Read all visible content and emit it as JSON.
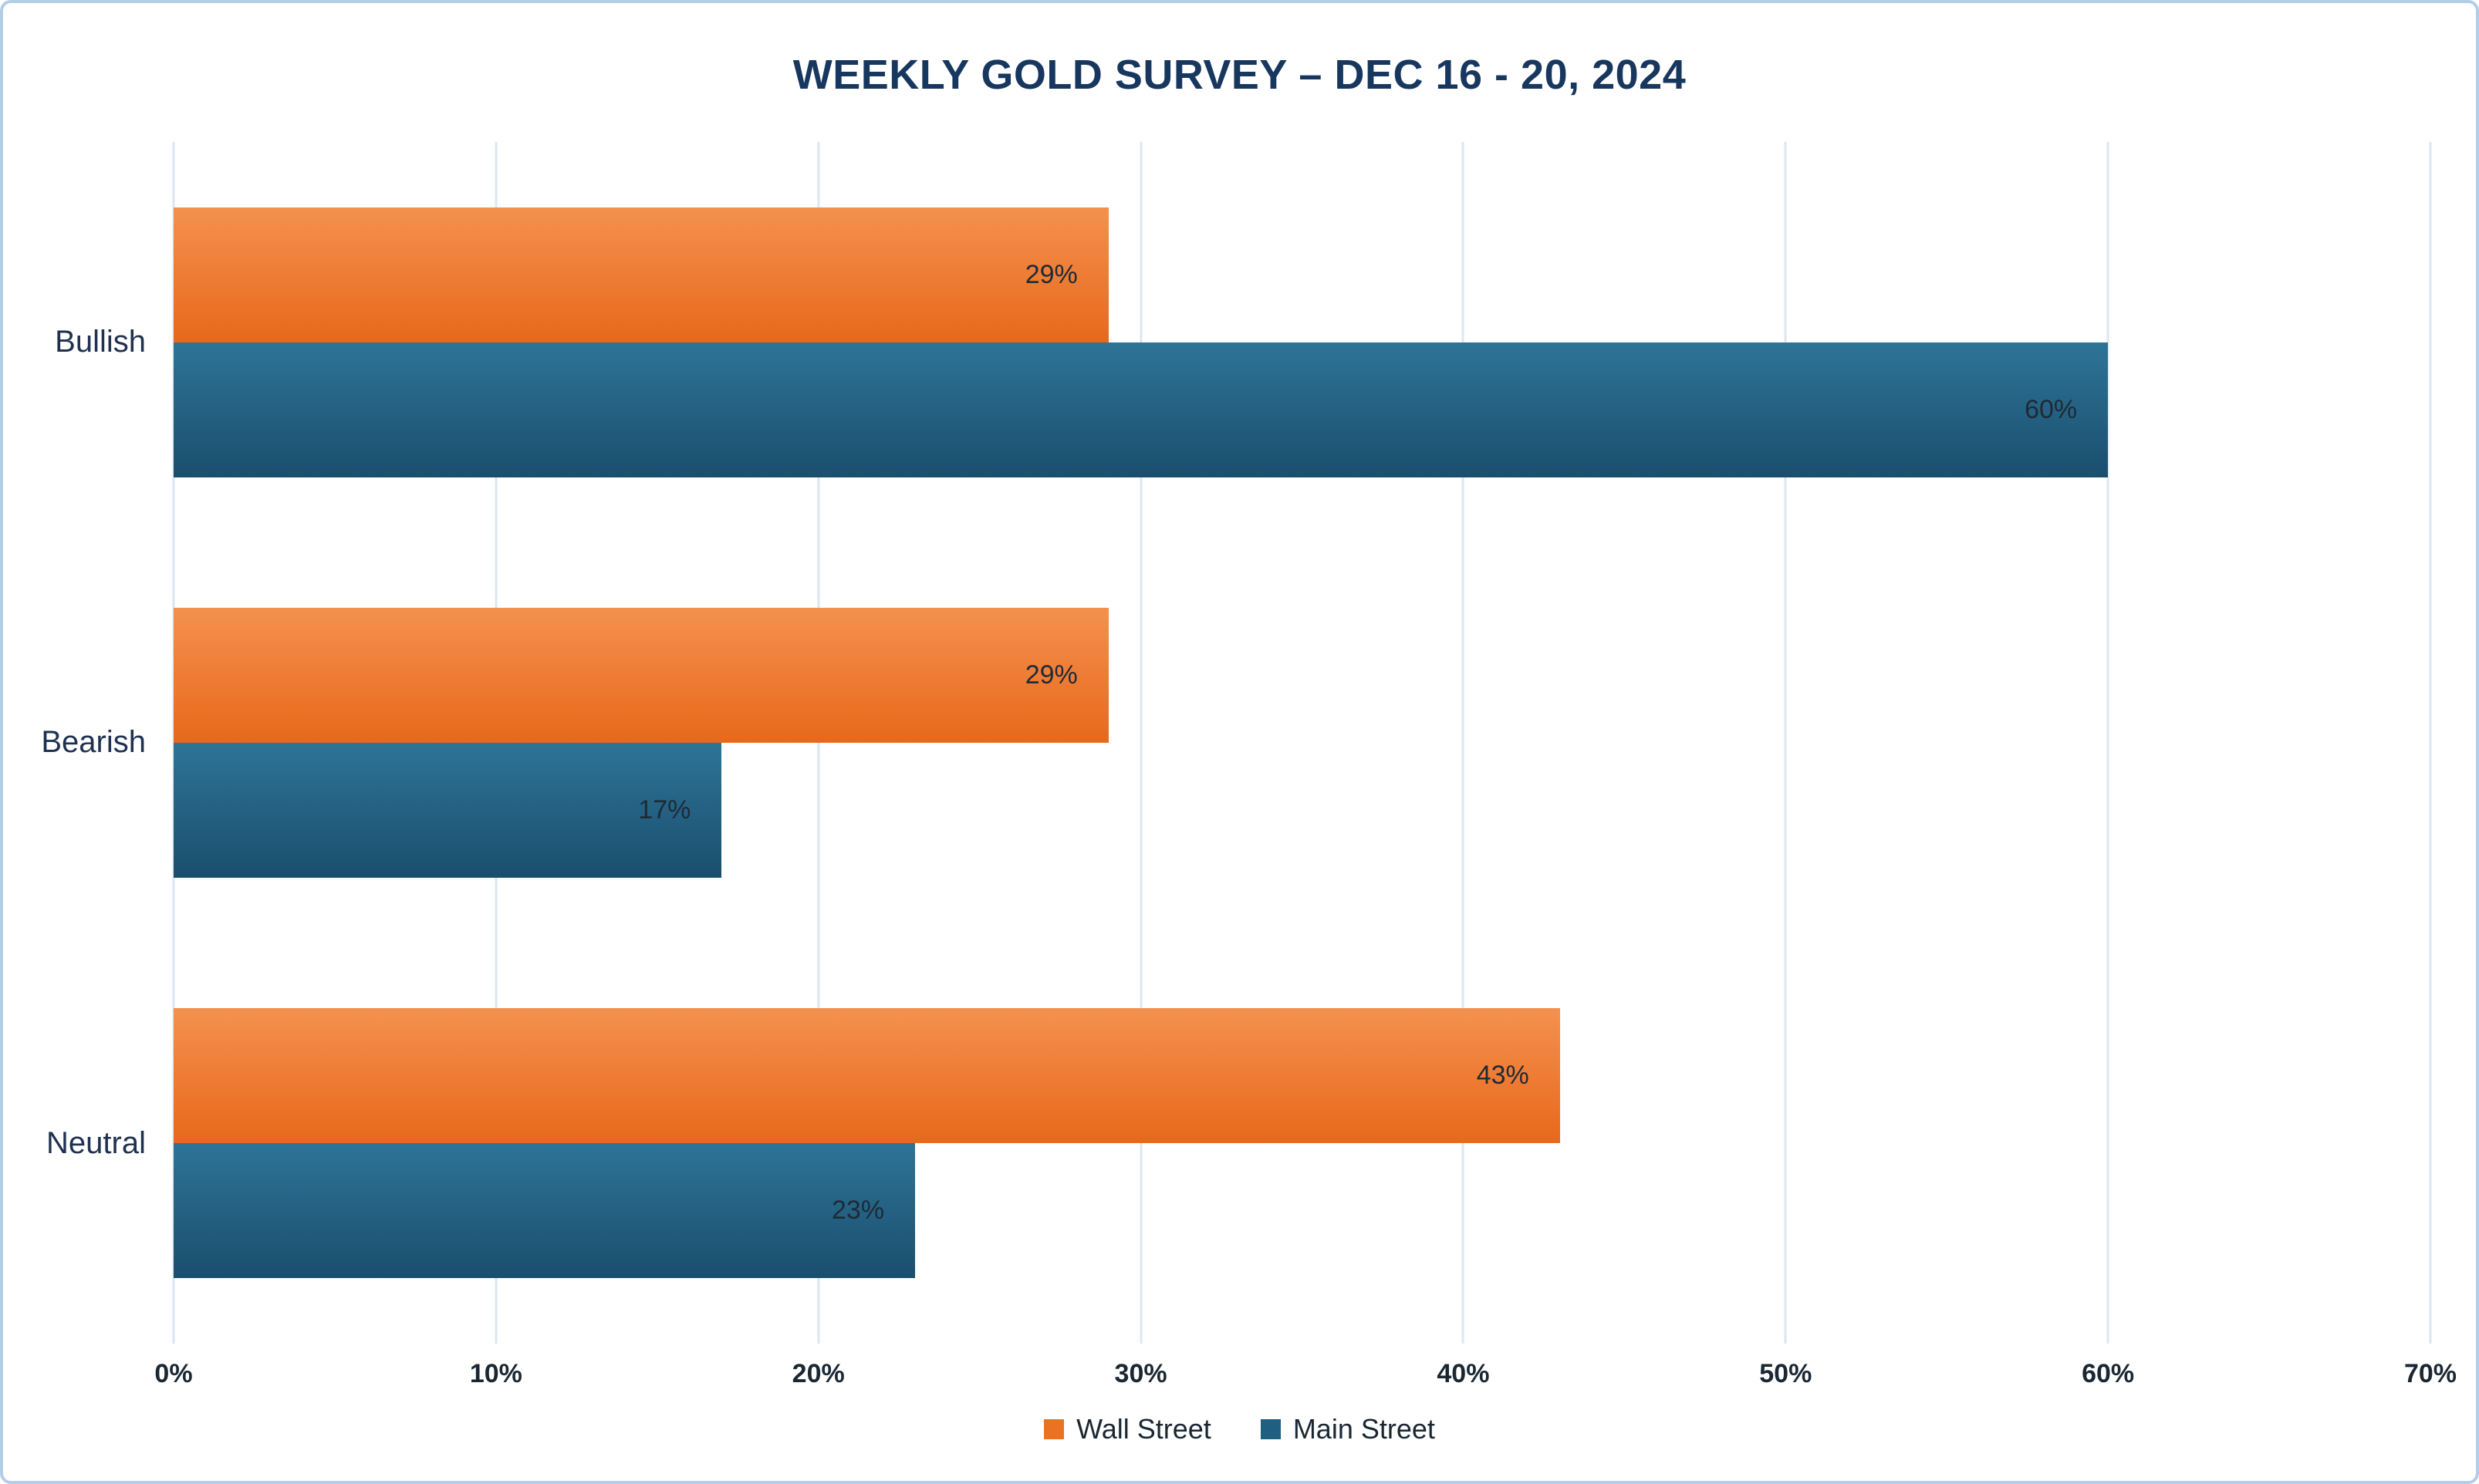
{
  "chart_data": {
    "type": "bar",
    "orientation": "horizontal",
    "title": "WEEKLY GOLD SURVEY – DEC 16 - 20, 2024",
    "categories": [
      "Bullish",
      "Bearish",
      "Neutral"
    ],
    "series": [
      {
        "name": "Wall Street",
        "legend_color": "#ec7223",
        "color_top": "#f4914f",
        "color_bottom": "#e8681b",
        "values": [
          29,
          29,
          43
        ]
      },
      {
        "name": "Main Street",
        "legend_color": "#1f5f82",
        "color_top": "#2e7497",
        "color_bottom": "#1a4e6e",
        "values": [
          60,
          17,
          23
        ]
      }
    ],
    "xlim": [
      0,
      70
    ],
    "x_ticks": [
      "0%",
      "10%",
      "20%",
      "30%",
      "40%",
      "50%",
      "60%",
      "70%"
    ],
    "value_suffix": "%",
    "grid": true,
    "gridline_color": "#dce6f2",
    "legend_position": "bottom",
    "value_label_color": "#1e2a36"
  }
}
